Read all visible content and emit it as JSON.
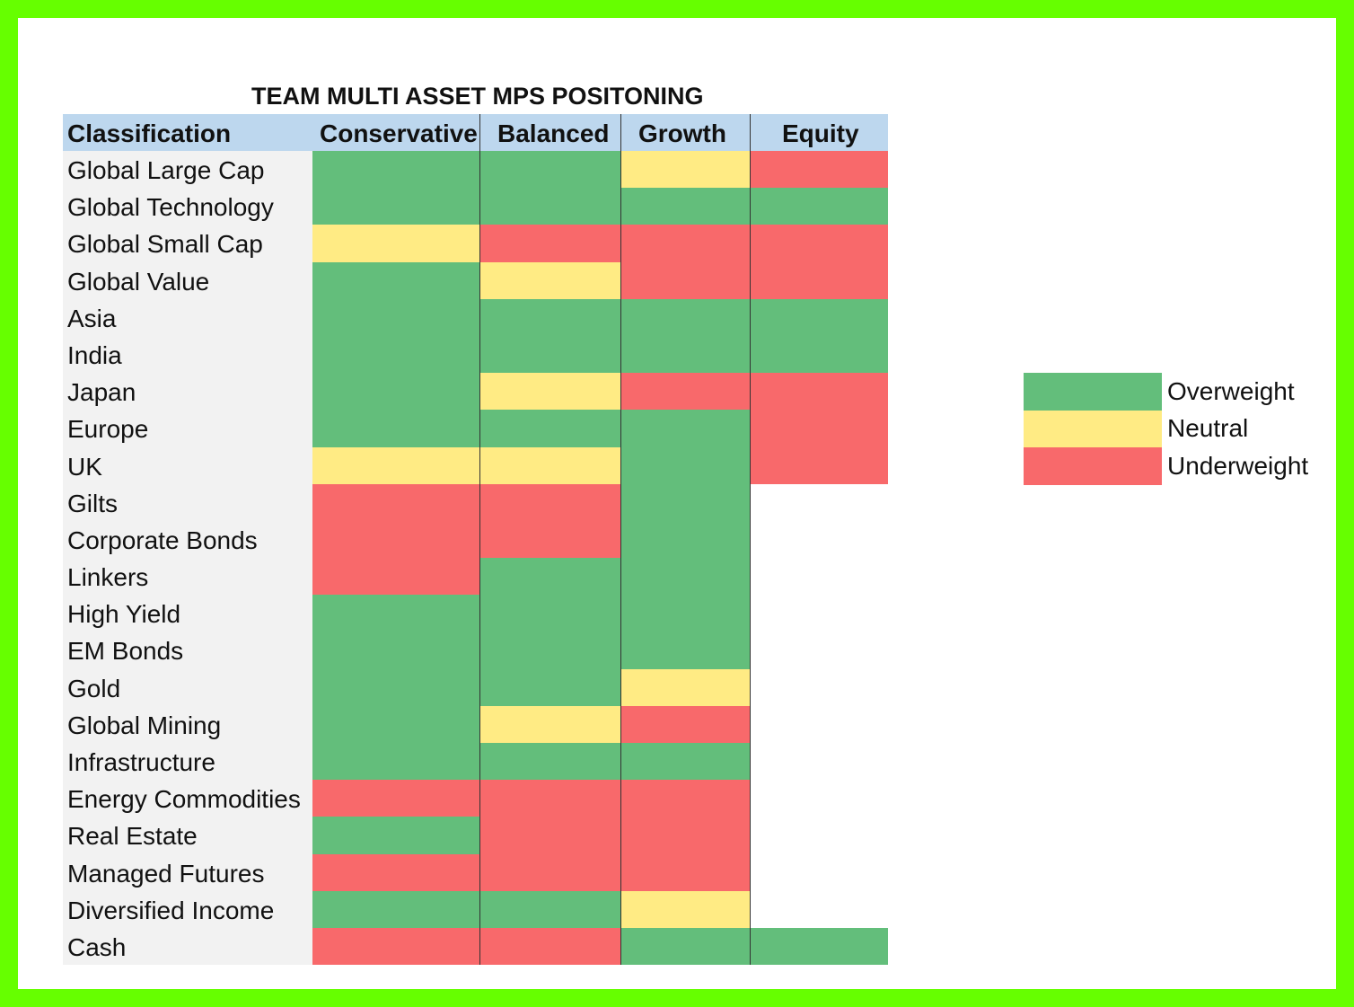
{
  "title": "TEAM MULTI ASSET MPS POSITONING",
  "headers": [
    "Classification",
    "Conservative",
    "Balanced",
    "Growth",
    "Equity"
  ],
  "colors": {
    "O": "#63be7b",
    "N": "#ffeb84",
    "U": "#f8696b",
    "": "#ffffff"
  },
  "rows": [
    {
      "label": "Global Large Cap",
      "v": [
        "O",
        "O",
        "N",
        "U"
      ]
    },
    {
      "label": "Global Technology",
      "v": [
        "O",
        "O",
        "O",
        "O"
      ]
    },
    {
      "label": "Global Small Cap",
      "v": [
        "N",
        "U",
        "U",
        "U"
      ]
    },
    {
      "label": "Global Value",
      "v": [
        "O",
        "N",
        "U",
        "U"
      ]
    },
    {
      "label": "Asia",
      "v": [
        "O",
        "O",
        "O",
        "O"
      ]
    },
    {
      "label": "India",
      "v": [
        "O",
        "O",
        "O",
        "O"
      ]
    },
    {
      "label": "Japan",
      "v": [
        "O",
        "N",
        "U",
        "U"
      ]
    },
    {
      "label": "Europe",
      "v": [
        "O",
        "O",
        "O",
        "U"
      ]
    },
    {
      "label": "UK",
      "v": [
        "N",
        "N",
        "O",
        "U"
      ]
    },
    {
      "label": "Gilts",
      "v": [
        "U",
        "U",
        "O",
        ""
      ]
    },
    {
      "label": "Corporate Bonds",
      "v": [
        "U",
        "U",
        "O",
        ""
      ]
    },
    {
      "label": "Linkers",
      "v": [
        "U",
        "O",
        "O",
        ""
      ]
    },
    {
      "label": "High Yield",
      "v": [
        "O",
        "O",
        "O",
        ""
      ]
    },
    {
      "label": "EM Bonds",
      "v": [
        "O",
        "O",
        "O",
        ""
      ]
    },
    {
      "label": "Gold",
      "v": [
        "O",
        "O",
        "N",
        ""
      ]
    },
    {
      "label": "Global Mining",
      "v": [
        "O",
        "N",
        "U",
        ""
      ]
    },
    {
      "label": "Infrastructure",
      "v": [
        "O",
        "O",
        "O",
        ""
      ]
    },
    {
      "label": "Energy Commodities",
      "v": [
        "U",
        "U",
        "U",
        ""
      ]
    },
    {
      "label": "Real Estate",
      "v": [
        "O",
        "U",
        "U",
        ""
      ]
    },
    {
      "label": "Managed Futures",
      "v": [
        "U",
        "U",
        "U",
        ""
      ]
    },
    {
      "label": "Diversified Income",
      "v": [
        "O",
        "O",
        "N",
        ""
      ]
    },
    {
      "label": "Cash",
      "v": [
        "U",
        "U",
        "O",
        "O"
      ]
    }
  ],
  "legend": [
    {
      "key": "O",
      "label": "Overweight"
    },
    {
      "key": "N",
      "label": "Neutral"
    },
    {
      "key": "U",
      "label": "Underweight"
    }
  ]
}
